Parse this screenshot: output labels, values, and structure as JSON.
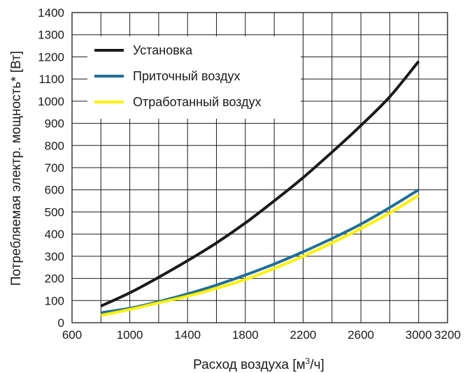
{
  "chart_data": {
    "type": "line",
    "title": "",
    "xlabel_text": "Расход воздуха [м",
    "xlabel_sup": "3",
    "xlabel_tail": "/ч]",
    "ylabel": "Потребляемая электр. мощность* [Вт]",
    "xlim": [
      600,
      3200
    ],
    "ylim": [
      0,
      1400
    ],
    "x_ticks": [
      600,
      1000,
      1400,
      1800,
      2200,
      2600,
      3000,
      3200
    ],
    "x_grid_step": 200,
    "y_ticks": [
      0,
      100,
      200,
      300,
      400,
      500,
      600,
      700,
      800,
      900,
      1000,
      1100,
      1200,
      1300,
      1400
    ],
    "grid": true,
    "legend_position": "top-left",
    "series": [
      {
        "name": "Установка",
        "color": "#1a1a1a",
        "x": [
          800,
          1000,
          1200,
          1400,
          1600,
          1800,
          2000,
          2200,
          2400,
          2600,
          2800,
          3000
        ],
        "y": [
          75,
          135,
          205,
          280,
          360,
          450,
          550,
          655,
          770,
          890,
          1020,
          1180
        ]
      },
      {
        "name": "Приточный воздух",
        "color": "#1f6f99",
        "x": [
          800,
          1000,
          1200,
          1400,
          1600,
          1800,
          2000,
          2200,
          2400,
          2600,
          2800,
          3000
        ],
        "y": [
          45,
          65,
          95,
          130,
          170,
          215,
          265,
          320,
          380,
          445,
          520,
          600
        ]
      },
      {
        "name": "Отработанный воздух",
        "color": "#fff200",
        "x": [
          800,
          1000,
          1200,
          1400,
          1600,
          1800,
          2000,
          2200,
          2400,
          2600,
          2800,
          3000
        ],
        "y": [
          33,
          60,
          90,
          120,
          155,
          195,
          245,
          300,
          360,
          425,
          495,
          575
        ]
      }
    ]
  }
}
